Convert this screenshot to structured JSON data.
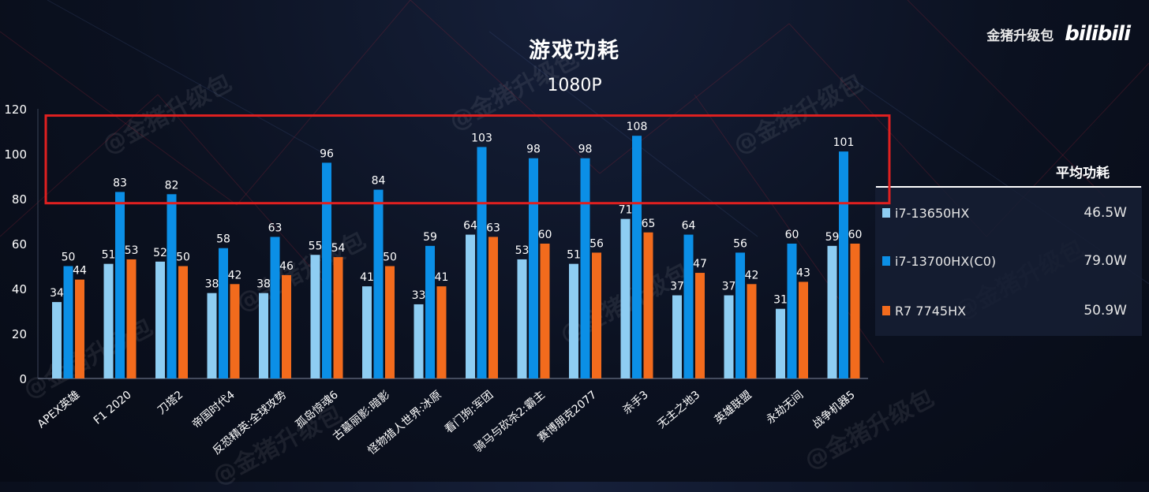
{
  "chart_data": {
    "type": "bar",
    "title": "游戏功耗",
    "subtitle": "1080P",
    "ylim": [
      0,
      120
    ],
    "yticks": [
      0,
      20,
      40,
      60,
      80,
      100,
      120
    ],
    "categories": [
      "APEX英雄",
      "F1 2020",
      "刀塔2",
      "帝国时代4",
      "反恐精英:全球攻势",
      "孤岛惊魂6",
      "古墓丽影:暗影",
      "怪物猎人世界:冰原",
      "看门狗:军团",
      "骑马与砍杀2:霸主",
      "赛博朋克2077",
      "杀手3",
      "无主之地3",
      "英雄联盟",
      "永劫无间",
      "战争机器5"
    ],
    "series": [
      {
        "name": "i7-13650HX",
        "color": "#8ecdf2",
        "values": [
          34,
          51,
          52,
          38,
          38,
          55,
          41,
          33,
          64,
          53,
          51,
          71,
          37,
          37,
          31,
          59
        ]
      },
      {
        "name": "i7-13700HX(C0)",
        "color": "#0b8fe6",
        "values": [
          50,
          83,
          82,
          58,
          63,
          96,
          84,
          59,
          103,
          98,
          98,
          108,
          64,
          56,
          60,
          101
        ]
      },
      {
        "name": "R7 7745HX",
        "color": "#f26b1d",
        "values": [
          44,
          53,
          50,
          42,
          46,
          54,
          50,
          41,
          63,
          60,
          56,
          65,
          47,
          42,
          43,
          60
        ]
      }
    ],
    "legend": {
      "header": "平均功耗",
      "placement": "right",
      "averages": [
        "46.5W",
        "79.0W",
        "50.9W"
      ]
    },
    "highlight": {
      "color": "#e02020",
      "y_from": 78,
      "y_to": 117
    }
  },
  "brand": {
    "text": "金猪升级包",
    "logo": "bilibili"
  },
  "watermark": "@金猪升级包"
}
